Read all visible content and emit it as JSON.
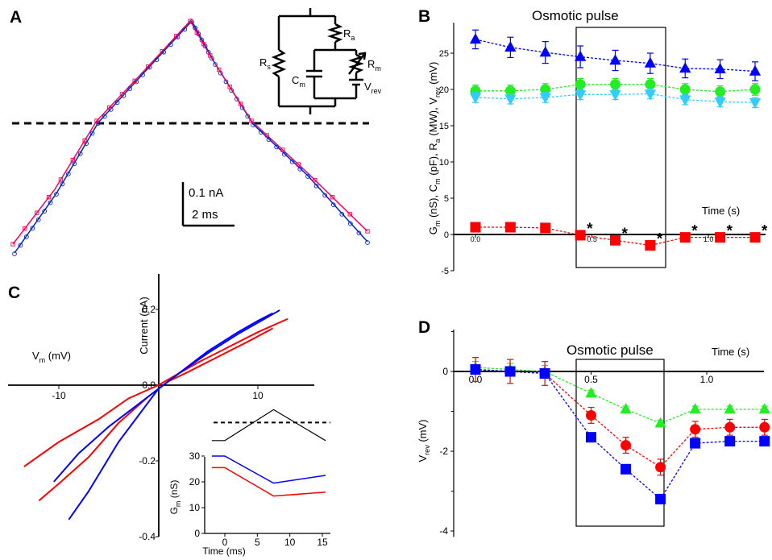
{
  "panels": {
    "a": {
      "letter": "A",
      "scale_bar": {
        "current": "0.1 nA",
        "time": "2 ms"
      },
      "circuit_labels": {
        "rs": "R",
        "rs_sub": "s",
        "ra": "R",
        "ra_sub": "a",
        "cm": "C",
        "cm_sub": "m",
        "rm": "R",
        "rm_sub": "m",
        "vrev": "V",
        "vrev_sub": "rev"
      },
      "trace_colors": {
        "fit": "#ff0055",
        "data": "#0022cc"
      }
    },
    "b": {
      "letter": "B",
      "pulse_label": "Osmotic pulse",
      "x_axis_title": "Time (s)",
      "x_tick_labels": [
        "0.0",
        "0.5",
        "1.0"
      ],
      "y_tick_labels": [
        "-5",
        "0",
        "5",
        "10",
        "15",
        "20",
        "25"
      ],
      "y_label_parts": [
        "G",
        "m",
        " (nS), C",
        "m",
        " (pF), R",
        "a",
        " (MW), V",
        "rev",
        " (mV)"
      ],
      "star": "*"
    },
    "c": {
      "letter": "C",
      "x_axis_title": "V",
      "x_axis_title_sub": "m",
      "x_axis_unit": " (mV)",
      "y_axis_title": "Current (nA)",
      "x_tick_labels": [
        "-10",
        "10"
      ],
      "y_tick_labels": [
        "0.2",
        "0.0",
        "-0.2",
        "-0.4"
      ],
      "inset": {
        "x_axis_title": "Time (ms)",
        "y_axis_title": "G",
        "y_axis_title_sub": "m",
        "y_axis_unit": " (nS)",
        "x_tick_labels": [
          "0",
          "5",
          "10",
          "15"
        ],
        "y_tick_labels": [
          "0",
          "10",
          "20",
          "30"
        ]
      }
    },
    "d": {
      "letter": "D",
      "pulse_label": "Osmotic pulse",
      "x_axis_title": "Time (s)",
      "x_tick_labels": [
        "0.0",
        "0.5",
        "1.0"
      ],
      "y_tick_labels": [
        "0",
        "-2",
        "-4"
      ],
      "y_axis_title": "V",
      "y_axis_title_sub": "rev",
      "y_axis_unit": " (mV)"
    }
  },
  "chart_data": [
    {
      "panel": "B",
      "type": "scatter",
      "x_domain": [
        0,
        1.35
      ],
      "ylim": [
        -5,
        30
      ],
      "pulse_interval": [
        0.45,
        0.8
      ],
      "series": [
        {
          "color": "#0000ff",
          "marker": "triangle-up",
          "x": [
            0.0,
            0.15,
            0.3,
            0.45,
            0.6,
            0.75,
            0.9,
            1.05,
            1.2
          ],
          "y": [
            26.9,
            25.8,
            25.1,
            24.5,
            24.0,
            23.6,
            22.9,
            22.8,
            22.5
          ],
          "err": [
            1.3,
            1.4,
            1.5,
            1.5,
            1.4,
            1.4,
            1.3,
            1.3,
            1.3
          ]
        },
        {
          "color": "#22ee22",
          "marker": "circle",
          "x": [
            0.0,
            0.15,
            0.3,
            0.45,
            0.6,
            0.75,
            0.9,
            1.05,
            1.2
          ],
          "y": [
            19.8,
            19.8,
            20.0,
            20.7,
            20.7,
            20.7,
            20.0,
            19.7,
            20.0
          ],
          "err": [
            0.8,
            0.8,
            0.8,
            0.8,
            0.8,
            0.8,
            0.8,
            0.8,
            0.8
          ]
        },
        {
          "color": "#33ccff",
          "marker": "triangle-down",
          "x": [
            0.0,
            0.15,
            0.3,
            0.45,
            0.6,
            0.75,
            0.9,
            1.05,
            1.2
          ],
          "y": [
            18.9,
            18.7,
            18.9,
            19.3,
            19.3,
            19.4,
            18.6,
            18.3,
            18.2
          ],
          "err": [
            0.7,
            0.7,
            0.7,
            0.7,
            0.7,
            0.7,
            0.7,
            0.7,
            0.7
          ]
        },
        {
          "color": "#ff0000",
          "marker": "square",
          "x": [
            0.0,
            0.15,
            0.3,
            0.45,
            0.6,
            0.75,
            0.9,
            1.05,
            1.2
          ],
          "y": [
            1.0,
            1.0,
            0.9,
            -0.1,
            -0.8,
            -1.5,
            -0.4,
            -0.4,
            -0.4
          ],
          "err": [
            0.15,
            0.15,
            0.15,
            0.2,
            0.3,
            0.3,
            0.2,
            0.2,
            0.2
          ]
        }
      ],
      "significant_x": [
        0.45,
        0.6,
        0.75,
        0.9,
        1.05,
        1.2
      ]
    },
    {
      "panel": "C",
      "type": "line",
      "x_domain": [
        -16,
        15
      ],
      "ylim": [
        -0.4,
        0.3
      ],
      "series": [
        {
          "color": "#ff0000",
          "points": [
            [
              -13.5,
              -0.215
            ],
            [
              -10,
              -0.15
            ],
            [
              -6,
              -0.09
            ],
            [
              -3,
              -0.035
            ],
            [
              0,
              0.0
            ],
            [
              2,
              0.03
            ],
            [
              4,
              0.06
            ],
            [
              7,
              0.1
            ],
            [
              10,
              0.14
            ],
            [
              13,
              0.175
            ]
          ]
        },
        {
          "color": "#ff0000",
          "points": [
            [
              -12,
              -0.305
            ],
            [
              -10,
              -0.26
            ],
            [
              -7,
              -0.19
            ],
            [
              -4,
              -0.1
            ],
            [
              -1,
              -0.03
            ],
            [
              1,
              0.01
            ],
            [
              3,
              0.035
            ],
            [
              6,
              0.075
            ],
            [
              9,
              0.115
            ],
            [
              11.5,
              0.15
            ]
          ]
        },
        {
          "color": "#0000ff",
          "points": [
            [
              -10.5,
              -0.255
            ],
            [
              -8,
              -0.18
            ],
            [
              -5,
              -0.11
            ],
            [
              -2,
              -0.05
            ],
            [
              0,
              -0.01
            ],
            [
              2,
              0.03
            ],
            [
              5,
              0.09
            ],
            [
              8,
              0.14
            ],
            [
              10,
              0.17
            ],
            [
              11.5,
              0.19
            ]
          ]
        },
        {
          "color": "#0000ff",
          "points": [
            [
              -9,
              -0.355
            ],
            [
              -7,
              -0.28
            ],
            [
              -4,
              -0.15
            ],
            [
              -2,
              -0.08
            ],
            [
              0,
              -0.01
            ],
            [
              2,
              0.03
            ],
            [
              5,
              0.085
            ],
            [
              8,
              0.135
            ],
            [
              11,
              0.18
            ],
            [
              12.2,
              0.198
            ]
          ]
        }
      ],
      "inset": {
        "x_domain": [
          -3,
          16
        ],
        "ylim": [
          0,
          30
        ],
        "protocol": {
          "color": "#000000",
          "points": [
            [
              -2,
              36
            ],
            [
              0,
              36
            ],
            [
              7.5,
              48
            ],
            [
              15.5,
              36
            ]
          ],
          "dashed_level": 43
        },
        "series": [
          {
            "color": "#0000ff",
            "points": [
              [
                -2,
                30
              ],
              [
                0,
                30
              ],
              [
                7.5,
                19.5
              ],
              [
                15.5,
                22.5
              ]
            ]
          },
          {
            "color": "#ff0000",
            "points": [
              [
                -2,
                25.5
              ],
              [
                0,
                25.5
              ],
              [
                7.5,
                14.5
              ],
              [
                15.5,
                16
              ]
            ]
          }
        ]
      }
    },
    {
      "panel": "D",
      "type": "scatter",
      "x_domain": [
        -0.05,
        1.3
      ],
      "ylim": [
        -4,
        1
      ],
      "pulse_interval": [
        0.45,
        0.8
      ],
      "series": [
        {
          "color": "#22ee22",
          "marker": "triangle-up",
          "x": [
            0.0,
            0.15,
            0.3,
            0.5,
            0.65,
            0.8,
            0.95,
            1.1,
            1.25
          ],
          "y": [
            0.1,
            0.05,
            0.0,
            -0.55,
            -0.95,
            -1.3,
            -0.95,
            -0.95,
            -0.95
          ],
          "err": [
            0.15,
            0.15,
            0.15,
            0.08,
            0.08,
            0.08,
            0.08,
            0.08,
            0.08
          ]
        },
        {
          "color": "#ff0000",
          "marker": "circle",
          "x": [
            0.0,
            0.15,
            0.3,
            0.5,
            0.65,
            0.8,
            0.95,
            1.1,
            1.25
          ],
          "y": [
            0.05,
            0.0,
            -0.05,
            -1.1,
            -1.85,
            -2.4,
            -1.45,
            -1.4,
            -1.4
          ],
          "err": [
            0.3,
            0.3,
            0.3,
            0.2,
            0.2,
            0.2,
            0.2,
            0.2,
            0.2
          ]
        },
        {
          "color": "#0000ff",
          "marker": "square",
          "x": [
            0.0,
            0.15,
            0.3,
            0.5,
            0.65,
            0.8,
            0.95,
            1.1,
            1.25
          ],
          "y": [
            0.05,
            0.0,
            -0.05,
            -1.65,
            -2.45,
            -3.2,
            -1.8,
            -1.75,
            -1.75
          ],
          "err": [
            0.1,
            0.1,
            0.1,
            0.05,
            0.05,
            0.1,
            0.05,
            0.05,
            0.05
          ]
        }
      ]
    }
  ]
}
